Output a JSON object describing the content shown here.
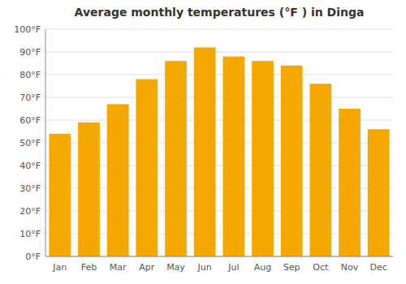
{
  "chart_data": {
    "type": "bar",
    "title": "Average monthly temperatures (°F ) in Dinga",
    "categories": [
      "Jan",
      "Feb",
      "Mar",
      "Apr",
      "May",
      "Jun",
      "Jul",
      "Aug",
      "Sep",
      "Oct",
      "Nov",
      "Dec"
    ],
    "values": [
      54,
      59,
      67,
      78,
      86,
      92,
      88,
      86,
      84,
      76,
      65,
      56
    ],
    "color": "#F5A800",
    "ylim": [
      0,
      100
    ],
    "yticks": [
      {
        "value": 0,
        "label": "0°F"
      },
      {
        "value": 10,
        "label": "10°F"
      },
      {
        "value": 20,
        "label": "20°F"
      },
      {
        "value": 30,
        "label": "30°F"
      },
      {
        "value": 40,
        "label": "40°F"
      },
      {
        "value": 50,
        "label": "50°F"
      },
      {
        "value": 60,
        "label": "60°F"
      },
      {
        "value": 70,
        "label": "70°F"
      },
      {
        "value": 80,
        "label": "80°F"
      },
      {
        "value": 90,
        "label": "90°F"
      },
      {
        "value": 100,
        "label": "100°F"
      }
    ],
    "grid": true
  }
}
